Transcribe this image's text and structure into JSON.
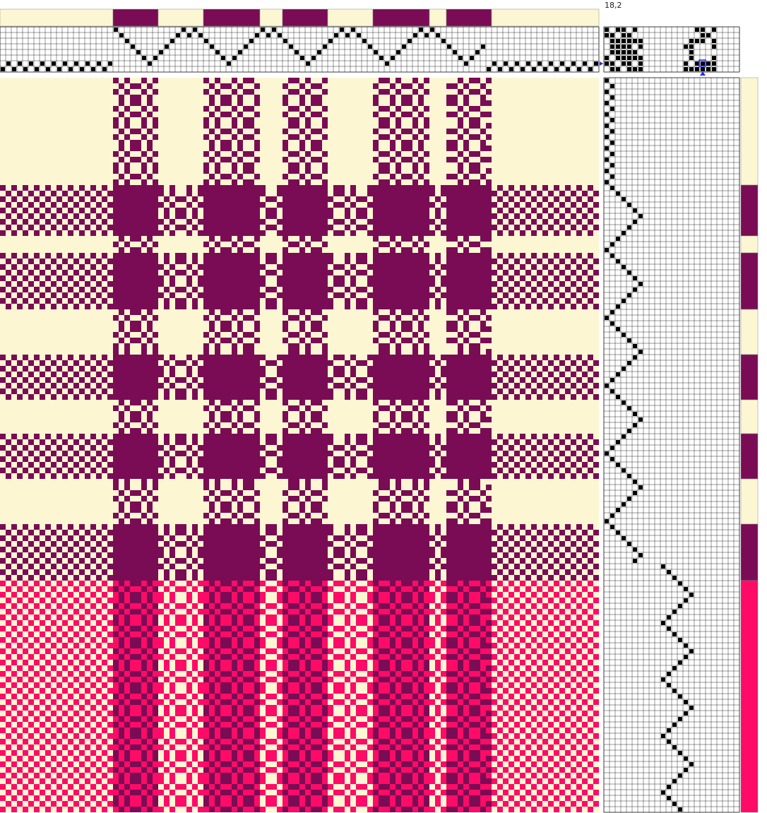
{
  "coordinate_readout": "18,2",
  "colors": {
    "cream": "#fcf7d2",
    "plum": "#7a0c55",
    "magenta": "#fd0b67",
    "light_yellow": "#f4f7b6",
    "grid_line": "#000000",
    "cell_filled": "#000000",
    "cursor": "#1f2fe8"
  },
  "icons": {
    "threading_row_marker": "blue-triangle-right-icon",
    "tieup_column_marker": "blue-triangle-up-icon",
    "cursor_marker": "blue-square-cursor-icon"
  },
  "warp_color_blocks": [
    {
      "color": "cream"
    },
    {
      "color": "plum"
    },
    {
      "color": "cream"
    },
    {
      "color": "plum"
    },
    {
      "color": "cream"
    },
    {
      "color": "plum"
    },
    {
      "color": "cream"
    },
    {
      "color": "plum"
    },
    {
      "color": "cream"
    },
    {
      "color": "plum"
    },
    {
      "color": "cream"
    }
  ],
  "weft_color_blocks": [
    {
      "color": "cream"
    },
    {
      "color": "plum"
    },
    {
      "color": "cream"
    },
    {
      "color": "plum"
    },
    {
      "color": "cream"
    },
    {
      "color": "plum"
    },
    {
      "color": "cream"
    },
    {
      "color": "plum"
    },
    {
      "color": "cream"
    },
    {
      "color": "plum"
    },
    {
      "color": "magenta"
    }
  ],
  "shafts": 8,
  "treadles": 8
}
